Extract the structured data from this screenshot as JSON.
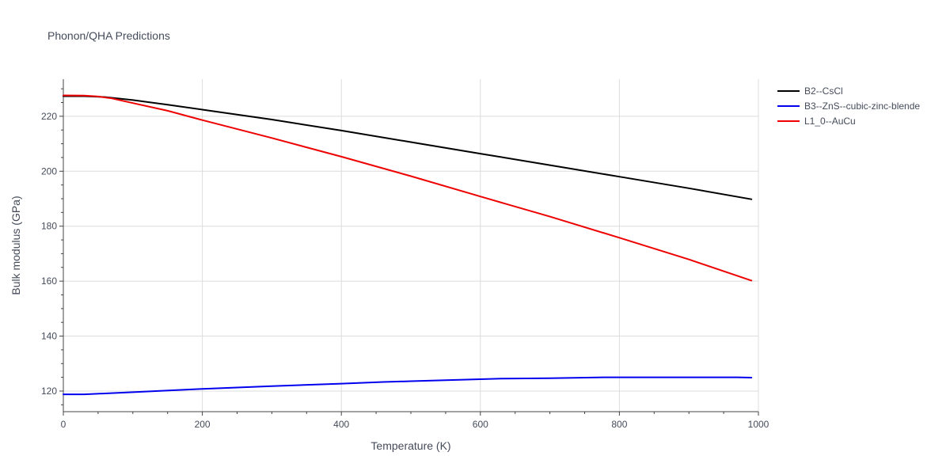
{
  "chart_data": {
    "type": "line",
    "title": "Phonon/QHA Predictions",
    "xlabel": "Temperature (K)",
    "ylabel": "Bulk modulus (GPa)",
    "xlim": [
      0,
      1000
    ],
    "ylim": [
      112.5,
      233.5
    ],
    "xticks": [
      0,
      200,
      400,
      600,
      800,
      1000
    ],
    "yticks": [
      120,
      140,
      160,
      180,
      200,
      220
    ],
    "grid": true,
    "legend_position": "top-right",
    "series": [
      {
        "name": "B2--CsCl",
        "color": "#000000",
        "x": [
          0,
          30,
          60,
          100,
          150,
          200,
          250,
          300,
          400,
          500,
          600,
          700,
          800,
          900,
          990
        ],
        "y": [
          227.3,
          227.3,
          227.0,
          225.9,
          224.2,
          222.4,
          220.6,
          218.8,
          214.8,
          210.6,
          206.4,
          202.2,
          198.0,
          193.8,
          189.8
        ]
      },
      {
        "name": "B3--ZnS--cubic-zinc-blende",
        "color": "#0000ee",
        "x": [
          0,
          30,
          100,
          200,
          300,
          400,
          460,
          500,
          630,
          700,
          780,
          900,
          970,
          990
        ],
        "y": [
          118.8,
          118.8,
          119.6,
          120.8,
          121.8,
          122.7,
          123.3,
          123.6,
          124.5,
          124.7,
          125.0,
          125.0,
          125.0,
          124.9
        ]
      },
      {
        "name": "L1_0--AuCu",
        "color": "#ee0000",
        "x": [
          0,
          30,
          50,
          70,
          100,
          150,
          200,
          300,
          400,
          500,
          600,
          700,
          800,
          900,
          990
        ],
        "y": [
          227.6,
          227.5,
          227.2,
          226.5,
          224.8,
          222.0,
          218.6,
          212.1,
          205.3,
          198.2,
          190.8,
          183.5,
          175.8,
          167.9,
          160.2
        ]
      }
    ]
  }
}
